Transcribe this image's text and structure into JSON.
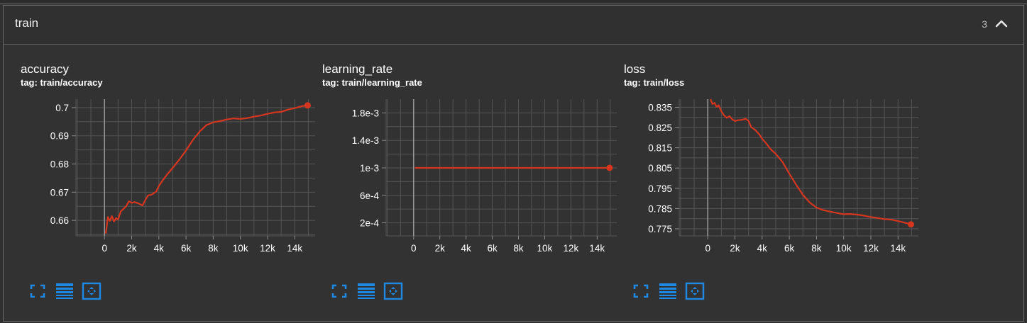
{
  "group": {
    "title": "train",
    "count": "3",
    "collapse_icon": "chevron-up-icon"
  },
  "colors": {
    "series": "#d6361f",
    "grid": "#555555",
    "zero_axis": "#9a9a9a",
    "tick_text": "#ffffff",
    "tool_blue": "#1e88e5"
  },
  "cards": [
    {
      "title": "accuracy",
      "tag": "tag: train/accuracy",
      "tools": [
        "fullscreen-icon",
        "toggle-log-scale-icon",
        "fit-domain-icon"
      ]
    },
    {
      "title": "learning_rate",
      "tag": "tag: train/learning_rate",
      "tools": [
        "fullscreen-icon",
        "toggle-log-scale-icon",
        "fit-domain-icon"
      ]
    },
    {
      "title": "loss",
      "tag": "tag: train/loss",
      "tools": [
        "fullscreen-icon",
        "toggle-log-scale-icon",
        "fit-domain-icon"
      ]
    }
  ],
  "chart_data": [
    {
      "type": "line",
      "title": "accuracy",
      "xlim": [
        -2100,
        15500
      ],
      "ylim": [
        0.6545,
        0.703
      ],
      "xticks": [
        0,
        2000,
        4000,
        6000,
        8000,
        10000,
        12000,
        14000
      ],
      "xtick_labels": [
        "0",
        "2k",
        "4k",
        "6k",
        "8k",
        "10k",
        "12k",
        "14k"
      ],
      "yticks": [
        0.66,
        0.67,
        0.68,
        0.69,
        0.7
      ],
      "ytick_labels": [
        "0.66",
        "0.67",
        "0.68",
        "0.69",
        "0.7"
      ],
      "series": [
        {
          "x": [
            100,
            250,
            400,
            550,
            700,
            850,
            1000,
            1200,
            1400,
            1600,
            1800,
            2000,
            2200,
            2500,
            2800,
            3000,
            3200,
            3500,
            3800,
            4000,
            4300,
            4600,
            5000,
            5500,
            6000,
            6500,
            7000,
            7500,
            8000,
            8500,
            9000,
            9500,
            10000,
            10500,
            11000,
            11500,
            12000,
            12500,
            13000,
            13500,
            14000,
            14500,
            14950
          ],
          "y": [
            0.6553,
            0.6612,
            0.6598,
            0.6615,
            0.6596,
            0.6608,
            0.6603,
            0.6632,
            0.6641,
            0.665,
            0.6668,
            0.6662,
            0.6665,
            0.666,
            0.6653,
            0.6672,
            0.6688,
            0.6692,
            0.6702,
            0.6722,
            0.6743,
            0.6762,
            0.6785,
            0.6815,
            0.6848,
            0.6885,
            0.6915,
            0.6938,
            0.6948,
            0.6952,
            0.6958,
            0.6962,
            0.696,
            0.6963,
            0.6968,
            0.6972,
            0.6978,
            0.6983,
            0.6985,
            0.6993,
            0.6998,
            0.7005,
            0.7008
          ]
        }
      ]
    },
    {
      "type": "line",
      "title": "learning_rate",
      "xlim": [
        -2100,
        15500
      ],
      "ylim": [
        1e-05,
        0.002
      ],
      "xticks": [
        0,
        2000,
        4000,
        6000,
        8000,
        10000,
        12000,
        14000
      ],
      "xtick_labels": [
        "0",
        "2k",
        "4k",
        "6k",
        "8k",
        "10k",
        "12k",
        "14k"
      ],
      "yticks": [
        0.0002,
        0.0006,
        0.001,
        0.0014,
        0.0018
      ],
      "ytick_labels": [
        "2e-4",
        "6e-4",
        "1e-3",
        "1.4e-3",
        "1.8e-3"
      ],
      "series": [
        {
          "x": [
            100,
            14950
          ],
          "y": [
            0.001,
            0.001
          ]
        }
      ]
    },
    {
      "type": "line",
      "title": "loss",
      "xlim": [
        -2100,
        15500
      ],
      "ylim": [
        0.7715,
        0.839
      ],
      "xticks": [
        0,
        2000,
        4000,
        6000,
        8000,
        10000,
        12000,
        14000
      ],
      "xtick_labels": [
        "0",
        "2k",
        "4k",
        "6k",
        "8k",
        "10k",
        "12k",
        "14k"
      ],
      "yticks": [
        0.775,
        0.785,
        0.795,
        0.805,
        0.815,
        0.825,
        0.835
      ],
      "ytick_labels": [
        "0.775",
        "0.785",
        "0.795",
        "0.805",
        "0.815",
        "0.825",
        "0.835"
      ],
      "series": [
        {
          "x": [
            200,
            350,
            500,
            650,
            800,
            1000,
            1200,
            1400,
            1600,
            1800,
            2000,
            2200,
            2500,
            2800,
            3000,
            3200,
            3500,
            3800,
            4000,
            4300,
            4600,
            5000,
            5500,
            6000,
            6500,
            7000,
            7500,
            8000,
            8500,
            9000,
            9500,
            10000,
            10500,
            11000,
            11500,
            12000,
            12500,
            13000,
            13500,
            14000,
            14500,
            14950
          ],
          "y": [
            0.8392,
            0.8365,
            0.8372,
            0.8352,
            0.836,
            0.833,
            0.831,
            0.8298,
            0.8306,
            0.829,
            0.8282,
            0.8286,
            0.8288,
            0.8293,
            0.8282,
            0.8252,
            0.8238,
            0.8215,
            0.8195,
            0.8172,
            0.8145,
            0.812,
            0.808,
            0.8022,
            0.7968,
            0.7918,
            0.788,
            0.7855,
            0.7842,
            0.7835,
            0.7828,
            0.7822,
            0.7823,
            0.782,
            0.7815,
            0.7808,
            0.7803,
            0.7798,
            0.7795,
            0.7788,
            0.778,
            0.7772
          ]
        }
      ]
    }
  ]
}
